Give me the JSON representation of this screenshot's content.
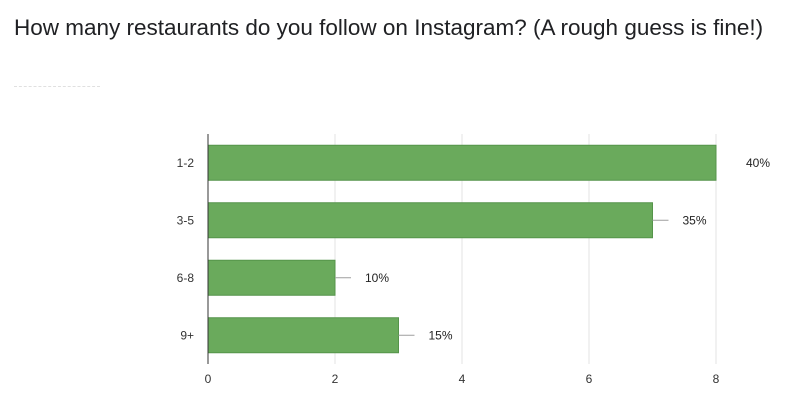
{
  "question": {
    "title": "How many restaurants do you follow on Instagram? (A rough guess is fine!)"
  },
  "chart_data": {
    "type": "bar",
    "orientation": "horizontal",
    "categories": [
      "1-2",
      "3-5",
      "6-8",
      "9+"
    ],
    "values": [
      8,
      7,
      2,
      3
    ],
    "percent_labels": [
      "40%",
      "35%",
      "10%",
      "15%"
    ],
    "xlim": [
      0,
      8
    ],
    "xticks": [
      "0",
      "2",
      "4",
      "6",
      "8"
    ],
    "grid": true,
    "bar_color": "#6aaa5c",
    "legend": "none",
    "title": "",
    "xlabel": "",
    "ylabel": ""
  }
}
